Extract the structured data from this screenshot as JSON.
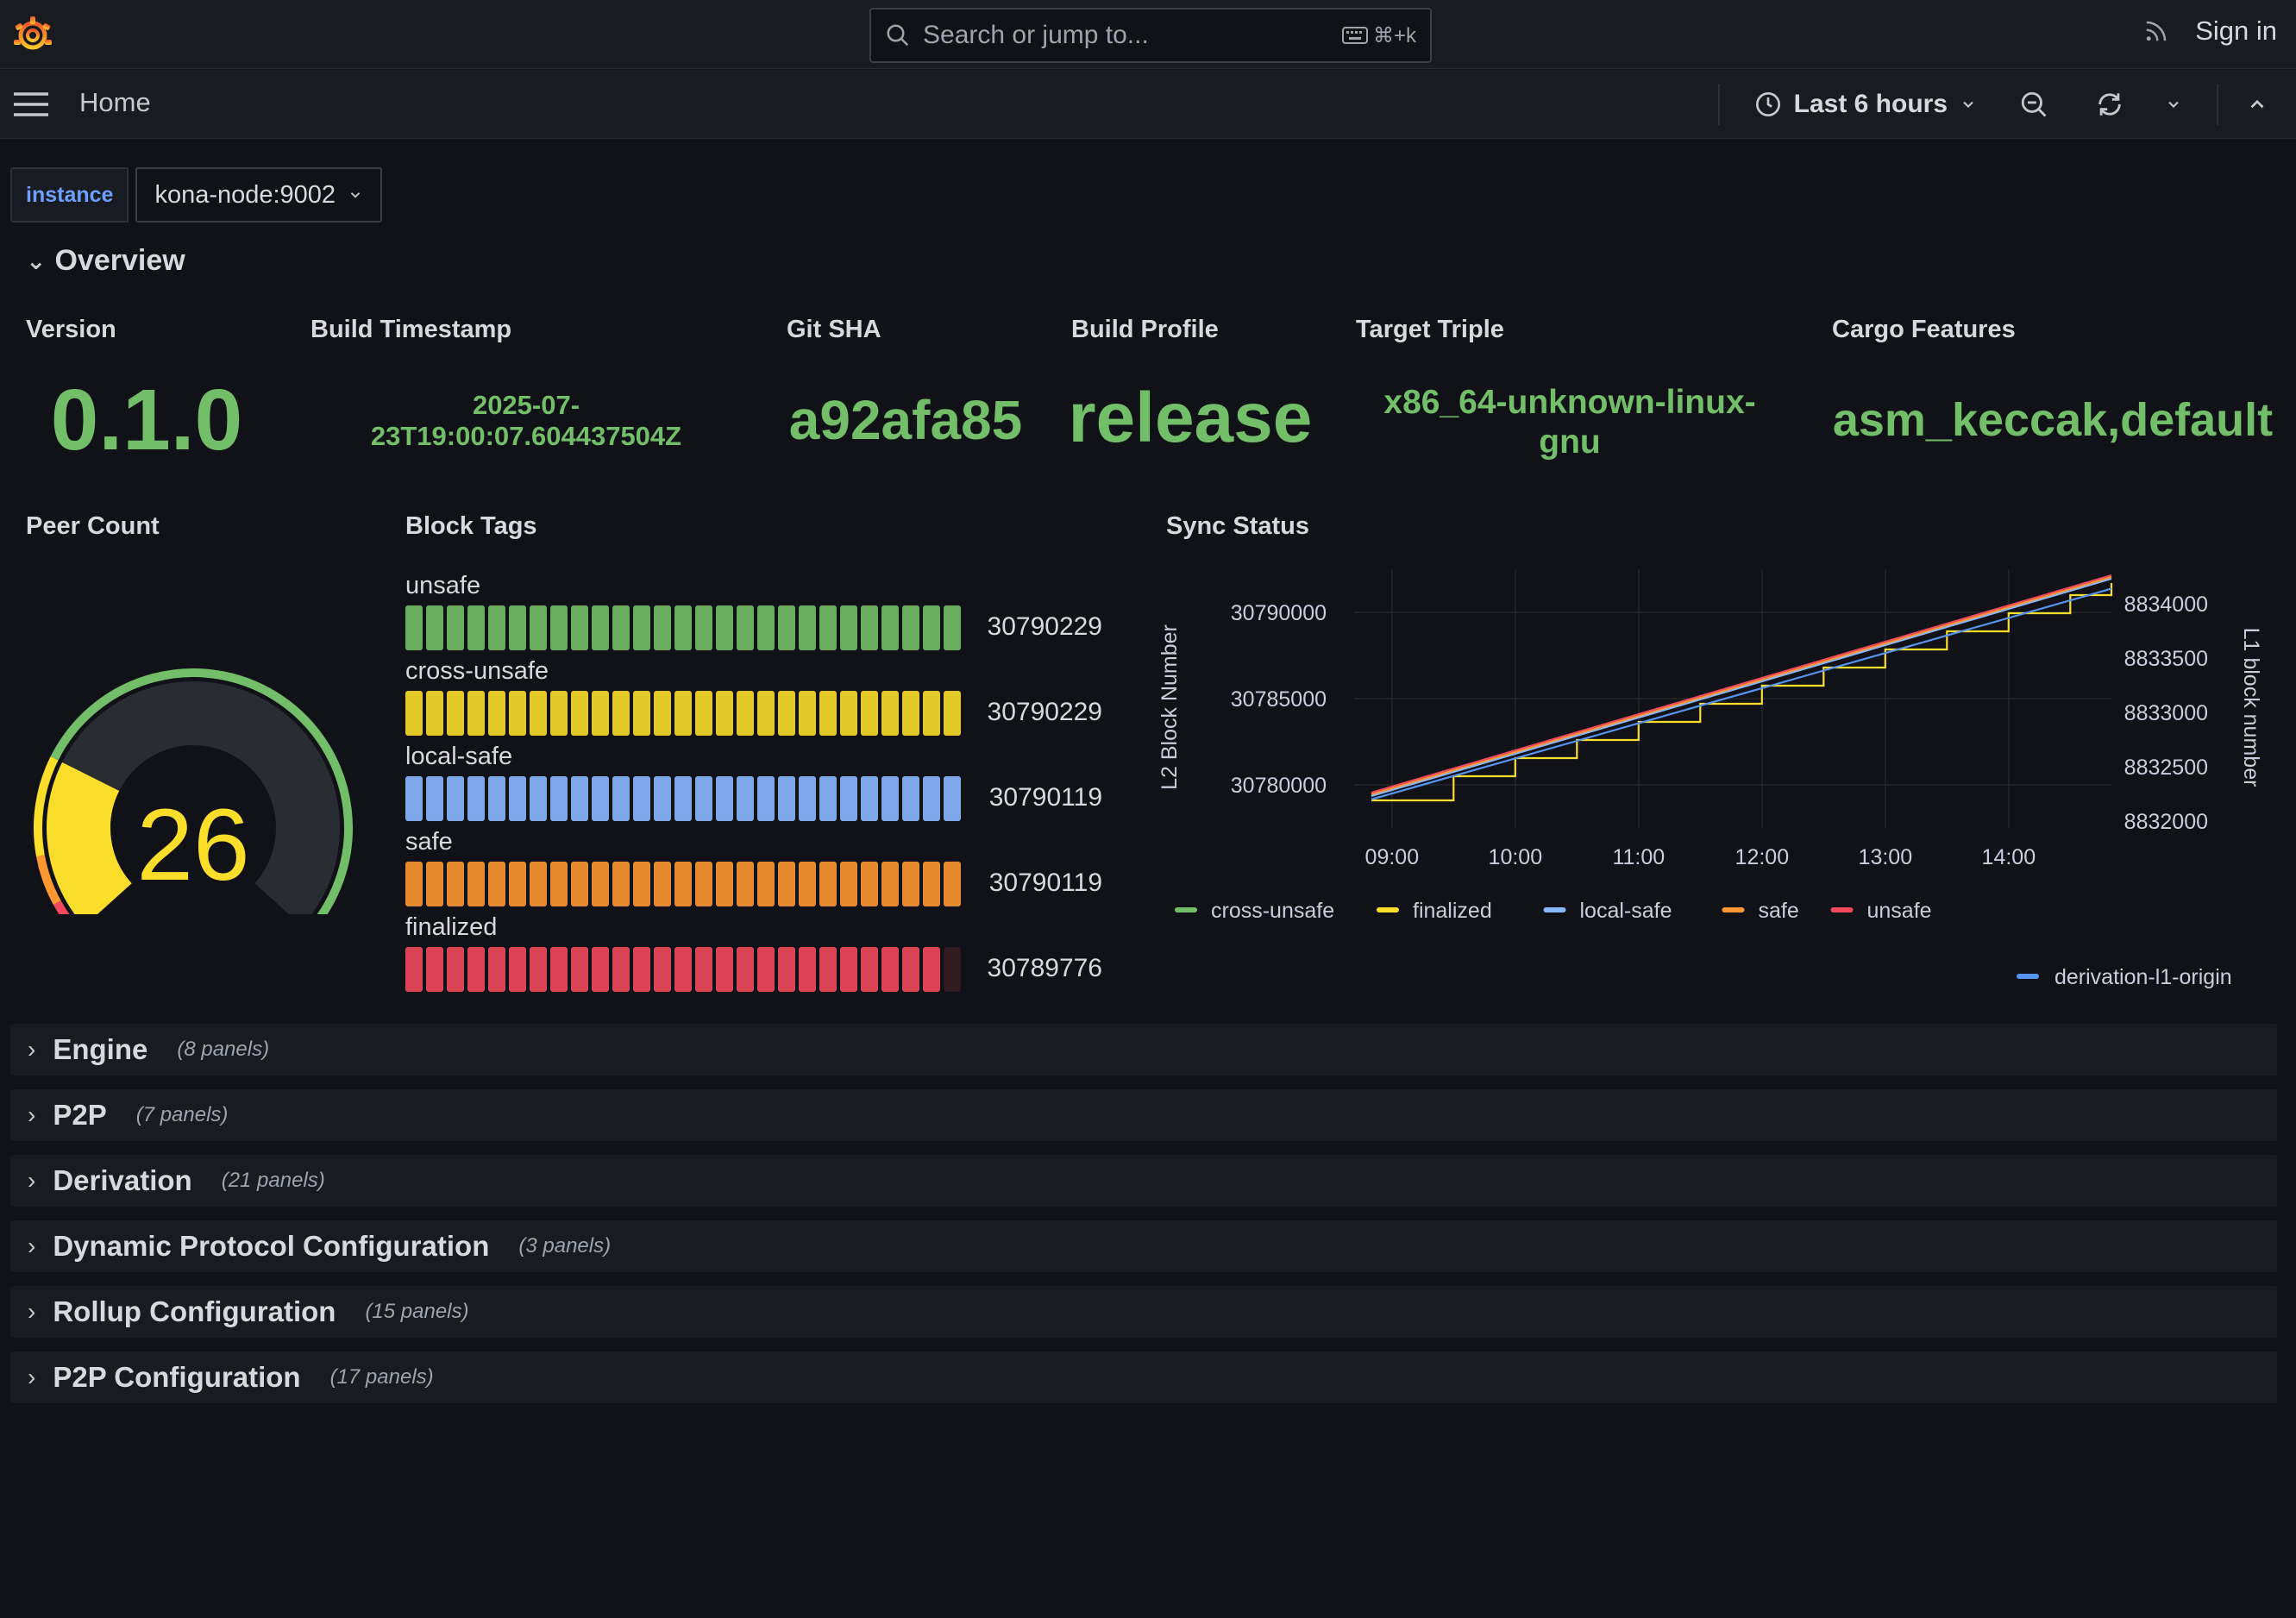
{
  "topbar": {
    "search_placeholder": "Search or jump to...",
    "search_shortcut": "⌘+k",
    "sign_in": "Sign in"
  },
  "navbar": {
    "breadcrumb": "Home",
    "time_range": "Last 6 hours"
  },
  "variables": {
    "label": "instance",
    "value": "kona-node:9002"
  },
  "overview": {
    "title": "Overview",
    "stats": [
      {
        "title": "Version",
        "value": "0.1.0"
      },
      {
        "title": "Build Timestamp",
        "value_line1": "2025-07-",
        "value_line2": "23T19:00:07.604437504Z"
      },
      {
        "title": "Git SHA",
        "value": "a92afa85"
      },
      {
        "title": "Build Profile",
        "value": "release"
      },
      {
        "title": "Target Triple",
        "value_line1": "x86_64-unknown-linux-",
        "value_line2": "gnu"
      },
      {
        "title": "Cargo Features",
        "value": "asm_keccak,default"
      }
    ],
    "peer_count": {
      "title": "Peer Count",
      "value": "26",
      "value_num": 26,
      "gauge_fraction": 0.26
    },
    "block_tags": {
      "title": "Block Tags",
      "items": [
        {
          "label": "unsafe",
          "value": "30790229",
          "color": "#73bf69",
          "fill_fraction": 1.0
        },
        {
          "label": "cross-unsafe",
          "value": "30790229",
          "color": "#fade2a",
          "fill_fraction": 1.0
        },
        {
          "label": "local-safe",
          "value": "30790119",
          "color": "#8ab8ff",
          "fill_fraction": 1.0
        },
        {
          "label": "safe",
          "value": "30790119",
          "color": "#ff9830",
          "fill_fraction": 1.0
        },
        {
          "label": "finalized",
          "value": "30789776",
          "color": "#f2495c",
          "fill_fraction": 0.96
        }
      ]
    },
    "sync_status": {
      "title": "Sync Status"
    }
  },
  "chart_data": {
    "type": "line",
    "title": "Sync Status",
    "xlabel": "",
    "ylabel": "L2 Block Number",
    "y2label": "L1 block number",
    "x_ticks": [
      "09:00",
      "10:00",
      "11:00",
      "12:00",
      "13:00",
      "14:00"
    ],
    "ylim": [
      30777500,
      30791500
    ],
    "y_ticks": [
      "30780000",
      "30785000",
      "30790000"
    ],
    "y2lim": [
      8832000,
      8834000
    ],
    "y2_ticks": [
      "8832000",
      "8832500",
      "8833000",
      "8833500",
      "8834000"
    ],
    "x": [
      "08:50",
      "09:30",
      "10:00",
      "10:30",
      "11:00",
      "11:30",
      "12:00",
      "12:30",
      "13:00",
      "13:30",
      "14:00",
      "14:30",
      "14:50"
    ],
    "series": [
      {
        "name": "cross-unsafe",
        "color": "#73bf69",
        "axis": "left",
        "values": [
          30779500,
          30780900,
          30781950,
          30783000,
          30784050,
          30785100,
          30786150,
          30787200,
          30788250,
          30789300,
          30790350,
          30791400,
          30792100
        ]
      },
      {
        "name": "finalized",
        "color": "#fade2a",
        "axis": "left",
        "values": [
          30779100,
          30780500,
          30781550,
          30782600,
          30783650,
          30784700,
          30785750,
          30786800,
          30787850,
          30788900,
          30789950,
          30791000,
          30791700
        ]
      },
      {
        "name": "local-safe",
        "color": "#8ab8ff",
        "axis": "left",
        "values": [
          30779350,
          30780750,
          30781800,
          30782850,
          30783900,
          30784950,
          30786000,
          30787050,
          30788100,
          30789150,
          30790200,
          30791250,
          30791950
        ]
      },
      {
        "name": "safe",
        "color": "#ff9830",
        "axis": "left",
        "values": [
          30779450,
          30780850,
          30781900,
          30782950,
          30784000,
          30785050,
          30786100,
          30787150,
          30788200,
          30789250,
          30790300,
          30791350,
          30792050
        ]
      },
      {
        "name": "unsafe",
        "color": "#f2495c",
        "axis": "left",
        "values": [
          30779550,
          30780950,
          30782000,
          30783050,
          30784100,
          30785150,
          30786200,
          30787250,
          30788300,
          30789350,
          30790400,
          30791450,
          30792150
        ]
      },
      {
        "name": "derivation-l1-origin",
        "color": "#5794f2",
        "axis": "right",
        "values": [
          8832200,
          8832415,
          8832577,
          8832738,
          8832900,
          8833062,
          8833223,
          8833385,
          8833546,
          8833708,
          8833869,
          8834031,
          8834138
        ]
      }
    ]
  },
  "sections": [
    {
      "name": "Engine",
      "count": "(8 panels)"
    },
    {
      "name": "P2P",
      "count": "(7 panels)"
    },
    {
      "name": "Derivation",
      "count": "(21 panels)"
    },
    {
      "name": "Dynamic Protocol Configuration",
      "count": "(3 panels)"
    },
    {
      "name": "Rollup Configuration",
      "count": "(15 panels)"
    },
    {
      "name": "P2P Configuration",
      "count": "(17 panels)"
    }
  ]
}
